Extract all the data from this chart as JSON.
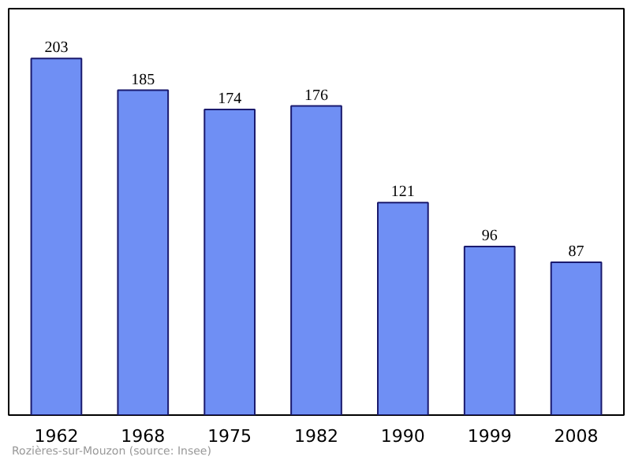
{
  "chart_data": {
    "type": "bar",
    "categories": [
      "1962",
      "1968",
      "1975",
      "1982",
      "1990",
      "1999",
      "2008"
    ],
    "values": [
      203,
      185,
      174,
      176,
      121,
      96,
      87
    ],
    "color": "#6f8ff4",
    "data_labels": true,
    "grid": false,
    "annotations": [
      "Rozières-sur-Mouzon    (source: Insee)"
    ]
  }
}
